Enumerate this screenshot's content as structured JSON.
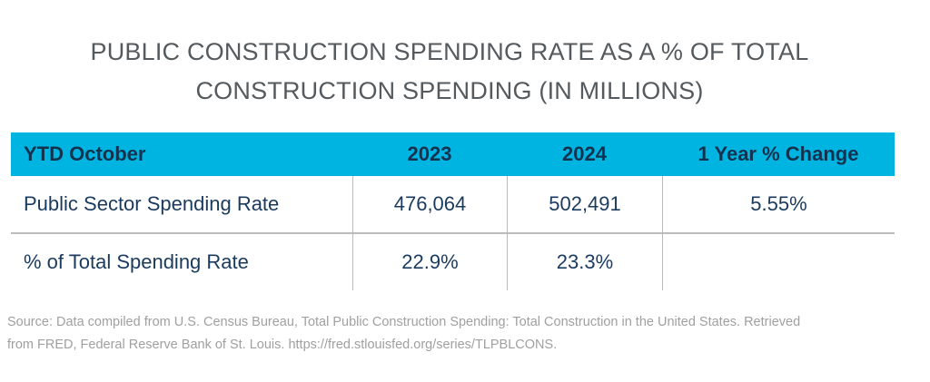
{
  "title": {
    "line1": "PUBLIC CONSTRUCTION SPENDING RATE AS A % OF TOTAL",
    "line2": "CONSTRUCTION SPENDING (IN MILLIONS)"
  },
  "table": {
    "headers": [
      "YTD October",
      "2023",
      "2024",
      "1 Year % Change"
    ],
    "rows": [
      [
        "Public Sector Spending Rate",
        "476,064",
        "502,491",
        "5.55%"
      ],
      [
        "% of Total Spending Rate",
        "22.9%",
        "23.3%",
        ""
      ]
    ]
  },
  "source": {
    "line1": "Source: Data compiled from U.S. Census Bureau, Total Public Construction Spending: Total Construction in the United States. Retrieved",
    "line2": "from FRED, Federal Reserve Bank of St. Louis. https://fred.stlouisfed.org/series/TLPBLCONS."
  },
  "colors": {
    "header_bg": "#00b4e1",
    "header_text": "#13324f",
    "body_text": "#1a3a5e",
    "title_text": "#555a5e",
    "source_text": "#a0a0a0"
  }
}
